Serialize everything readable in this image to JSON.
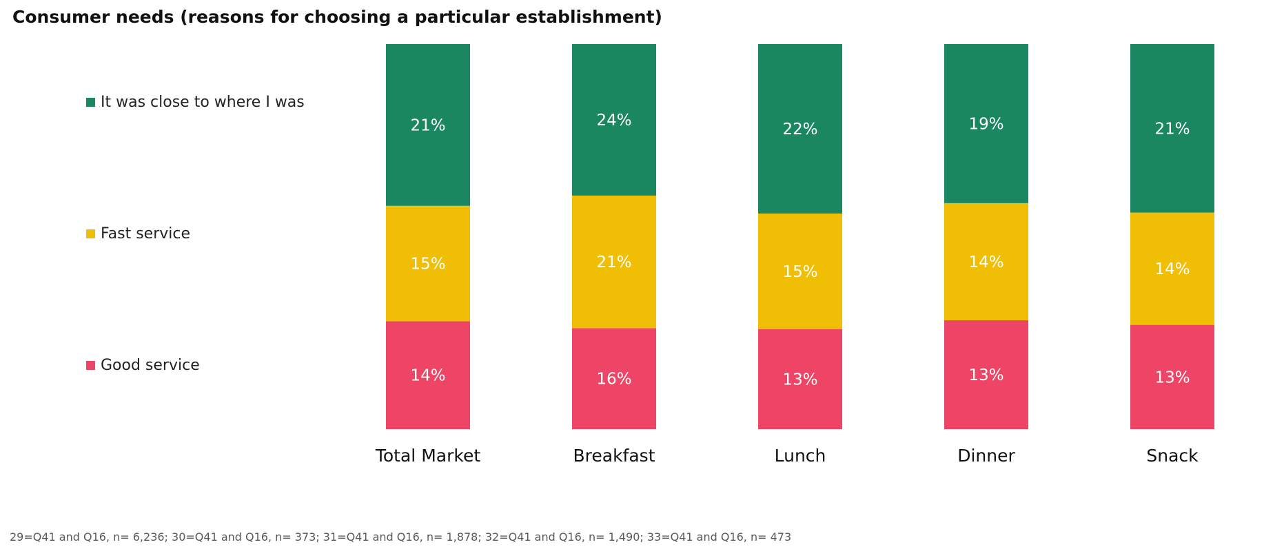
{
  "title": "Consumer needs (reasons for choosing a particular establishment)",
  "footnote": "29=Q41 and Q16, n= 6,236; 30=Q41 and Q16, n= 373; 31=Q41 and Q16, n= 1,878; 32=Q41 and Q16, n= 1,490; 33=Q41 and Q16, n= 473",
  "chart_data": {
    "type": "bar",
    "stacked": true,
    "categories": [
      "Total Market",
      "Breakfast",
      "Lunch",
      "Dinner",
      "Snack"
    ],
    "series": [
      {
        "name": "Good service",
        "color": "#EE4466",
        "values": [
          14,
          16,
          13,
          13,
          13
        ],
        "labels": [
          "14%",
          "16%",
          "13%",
          "13%",
          "13%"
        ]
      },
      {
        "name": "Fast service",
        "color": "#F0BE05",
        "values": [
          15,
          21,
          15,
          14,
          14
        ],
        "labels": [
          "15%",
          "21%",
          "15%",
          "14%",
          "14%"
        ]
      },
      {
        "name": "It was close to where I was",
        "color": "#1A8760",
        "values": [
          21,
          24,
          22,
          19,
          21
        ],
        "labels": [
          "21%",
          "24%",
          "22%",
          "19%",
          "21%"
        ]
      }
    ],
    "normalized": true,
    "legend": "left",
    "legend_order": [
      "It was close to where I was",
      "Fast service",
      "Good service"
    ],
    "grid": false
  }
}
